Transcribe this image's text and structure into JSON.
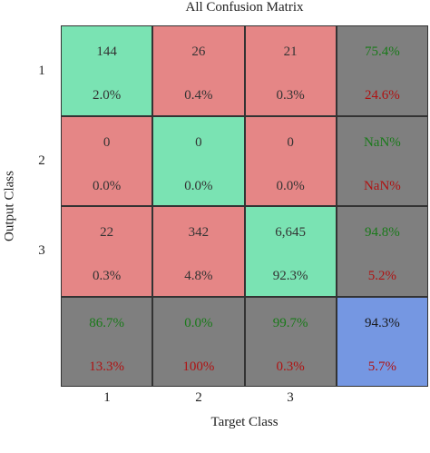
{
  "chart_data": {
    "type": "heatmap",
    "title": "All Confusion Matrix",
    "xlabel": "Target Class",
    "ylabel": "Output Class",
    "x_ticks": [
      "1",
      "2",
      "3"
    ],
    "y_ticks": [
      "1",
      "2",
      "3"
    ],
    "rows": [
      {
        "cells": [
          {
            "count": "144",
            "pct": "2.0%"
          },
          {
            "count": "26",
            "pct": "0.4%"
          },
          {
            "count": "21",
            "pct": "0.3%"
          }
        ],
        "summary": {
          "correct": "75.4%",
          "wrong": "24.6%"
        }
      },
      {
        "cells": [
          {
            "count": "0",
            "pct": "0.0%"
          },
          {
            "count": "0",
            "pct": "0.0%"
          },
          {
            "count": "0",
            "pct": "0.0%"
          }
        ],
        "summary": {
          "correct": "NaN%",
          "wrong": "NaN%"
        }
      },
      {
        "cells": [
          {
            "count": "22",
            "pct": "0.3%"
          },
          {
            "count": "342",
            "pct": "4.8%"
          },
          {
            "count": "6,645",
            "pct": "92.3%"
          }
        ],
        "summary": {
          "correct": "94.8%",
          "wrong": "5.2%"
        }
      }
    ],
    "column_summary": [
      {
        "correct": "86.7%",
        "wrong": "13.3%"
      },
      {
        "correct": "0.0%",
        "wrong": "100%"
      },
      {
        "correct": "99.7%",
        "wrong": "0.3%"
      }
    ],
    "overall": {
      "correct": "94.3%",
      "wrong": "5.7%"
    },
    "colors": {
      "correct_cell": "#7ae3b3",
      "wrong_cell": "#e58686",
      "summary_cell": "#7f7f7f",
      "overall_cell": "#7597e2",
      "correct_text": "#1a7a1a",
      "wrong_text": "#b01212"
    }
  }
}
